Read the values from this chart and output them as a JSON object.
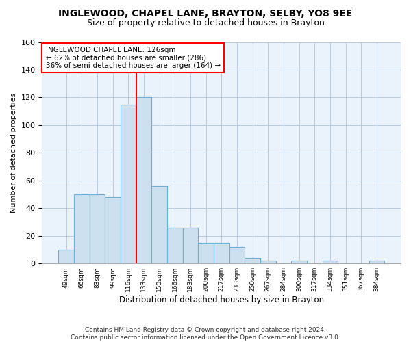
{
  "title1": "INGLEWOOD, CHAPEL LANE, BRAYTON, SELBY, YO8 9EE",
  "title2": "Size of property relative to detached houses in Brayton",
  "xlabel": "Distribution of detached houses by size in Brayton",
  "ylabel": "Number of detached properties",
  "bar_categories": [
    "49sqm",
    "66sqm",
    "83sqm",
    "99sqm",
    "116sqm",
    "133sqm",
    "150sqm",
    "166sqm",
    "183sqm",
    "200sqm",
    "217sqm",
    "233sqm",
    "250sqm",
    "267sqm",
    "284sqm",
    "300sqm",
    "317sqm",
    "334sqm",
    "351sqm",
    "367sqm",
    "384sqm"
  ],
  "bar_values": [
    10,
    50,
    50,
    48,
    115,
    120,
    56,
    26,
    26,
    15,
    15,
    12,
    4,
    2,
    0,
    2,
    0,
    2,
    0,
    0,
    2
  ],
  "bar_color": "#cce0f0",
  "bar_edge_color": "#6baed6",
  "vline_index": 4.5,
  "vline_color": "red",
  "annotation_text": "INGLEWOOD CHAPEL LANE: 126sqm\n← 62% of detached houses are smaller (286)\n36% of semi-detached houses are larger (164) →",
  "annotation_box_color": "white",
  "annotation_box_edge": "red",
  "ylim": [
    0,
    160
  ],
  "yticks": [
    0,
    20,
    40,
    60,
    80,
    100,
    120,
    140,
    160
  ],
  "grid_color": "#b0c4de",
  "bg_color": "#eaf2fb",
  "footer": "Contains HM Land Registry data © Crown copyright and database right 2024.\nContains public sector information licensed under the Open Government Licence v3.0."
}
